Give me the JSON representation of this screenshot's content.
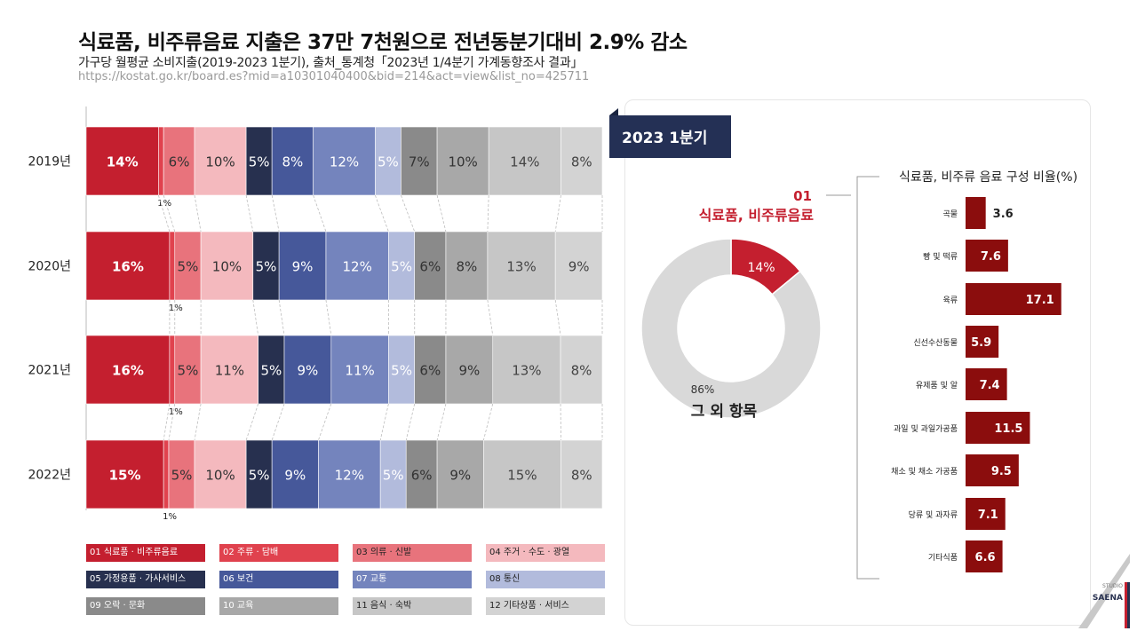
{
  "header": {
    "title": "식료품, 비주류음료 지출은 37만 7천원으로 전년동분기대비 2.9% 감소",
    "subtitle": "가구당 월평균 소비지출(2019-2023 1분기), 출처_통계청「2023년 1/4분기 가계동향조사 결과」",
    "url": "https://kostat.go.kr/board.es?mid=a10301040400&bid=214&act=view&list_no=425711"
  },
  "chart_data": [
    {
      "type": "bar",
      "orientation": "horizontal-stacked-100",
      "categories": [
        "2019년",
        "2020년",
        "2021년",
        "2022년"
      ],
      "series": [
        {
          "name": "01 식료품 · 비주류음료",
          "color": "#c41f2f",
          "values": [
            14,
            16,
            16,
            15
          ],
          "labels": [
            "14%",
            "16%",
            "16%",
            "15%"
          ]
        },
        {
          "name": "02 주류 · 담배",
          "color": "#e0424e",
          "values": [
            1,
            1,
            1,
            1
          ],
          "labels": [
            "1%",
            "1%",
            "1%",
            "1%"
          ]
        },
        {
          "name": "03 의류 · 신발",
          "color": "#e8737c",
          "values": [
            6,
            5,
            5,
            5
          ],
          "labels": [
            "6%",
            "5%",
            "5%",
            "5%"
          ]
        },
        {
          "name": "04 주거 · 수도 · 광열",
          "color": "#f4b9be",
          "values": [
            10,
            10,
            11,
            10
          ],
          "labels": [
            "10%",
            "10%",
            "11%",
            "10%"
          ]
        },
        {
          "name": "05 가정용품 · 가사서비스",
          "color": "#27304f",
          "values": [
            5,
            5,
            5,
            5
          ],
          "labels": [
            "5%",
            "5%",
            "5%",
            "5%"
          ]
        },
        {
          "name": "06 보건",
          "color": "#46589a",
          "values": [
            8,
            9,
            9,
            9
          ],
          "labels": [
            "8%",
            "9%",
            "9%",
            "9%"
          ]
        },
        {
          "name": "07 교통",
          "color": "#7484bd",
          "values": [
            12,
            12,
            11,
            12
          ],
          "labels": [
            "12%",
            "12%",
            "11%",
            "12%"
          ]
        },
        {
          "name": "08 통신",
          "color": "#b2bbdc",
          "values": [
            5,
            5,
            5,
            5
          ],
          "labels": [
            "5%",
            "5%",
            "5%",
            "5%"
          ]
        },
        {
          "name": "09 오락 · 문화",
          "color": "#8a8a8a",
          "values": [
            7,
            6,
            6,
            6
          ],
          "labels": [
            "7%",
            "6%",
            "6%",
            "6%"
          ]
        },
        {
          "name": "10 교육",
          "color": "#a8a8a8",
          "values": [
            10,
            8,
            9,
            9
          ],
          "labels": [
            "10%",
            "8%",
            "9%",
            "9%"
          ]
        },
        {
          "name": "11 음식 · 숙박",
          "color": "#c6c6c6",
          "values": [
            14,
            13,
            13,
            15
          ],
          "labels": [
            "14%",
            "13%",
            "13%",
            "15%"
          ]
        },
        {
          "name": "12 기타상품 · 서비스",
          "color": "#d3d3d3",
          "values": [
            8,
            9,
            8,
            8
          ],
          "labels": [
            "8%",
            "9%",
            "8%",
            "8%"
          ]
        }
      ],
      "unit": "%"
    },
    {
      "type": "pie",
      "variant": "donut",
      "title": "2023 1분기",
      "slices": [
        {
          "label": "식료품, 비주류음료",
          "tag": "01",
          "value": 14,
          "display": "14%",
          "color": "#c41f2f"
        },
        {
          "label": "그 외 항목",
          "value": 86,
          "display": "86%",
          "color": "#d9d9d9"
        }
      ]
    },
    {
      "type": "bar",
      "orientation": "horizontal",
      "title": "식료품, 비주류 음료 구성 비율(%)",
      "categories": [
        "곡물",
        "빵 및 떡류",
        "육류",
        "신선수산동물",
        "유제품 및 알",
        "과일 및 과일가공품",
        "채소 및 채소 가공품",
        "당류 및 과자류",
        "기타식품"
      ],
      "values": [
        3.6,
        7.6,
        17.1,
        5.9,
        7.4,
        11.5,
        9.5,
        7.1,
        6.6
      ],
      "color": "#8b0d0d"
    }
  ],
  "panel": {
    "badge": "2023 1분기",
    "callout_number": "01",
    "callout_label": "식료품, 비주류음료",
    "donut_pct": "14%",
    "other_pct": "86%",
    "other_label": "그 외 항목"
  },
  "brand": {
    "line1": "STUDIO",
    "line2": "SAENA"
  }
}
